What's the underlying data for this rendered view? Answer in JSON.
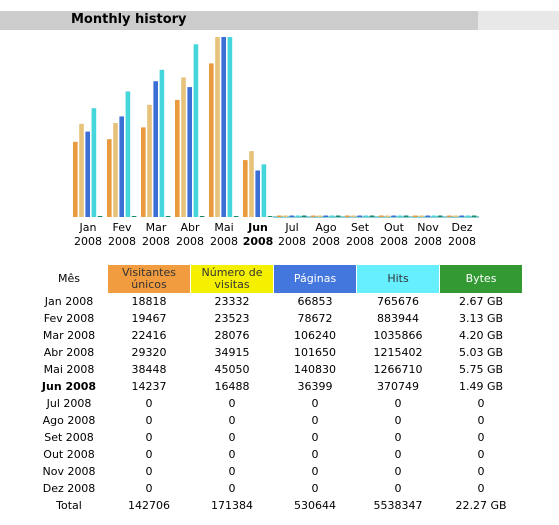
{
  "section_title": "Monthly history",
  "colors": {
    "visitors": "#e89a3c",
    "visits": "#e6c27a",
    "pages": "#3b6fd6",
    "hits": "#45d6db",
    "bytes": "#138a6e"
  },
  "chart_data": {
    "type": "bar",
    "title": "",
    "xlabel": "",
    "ylabel": "",
    "grid": false,
    "categories": [
      "Jan 2008",
      "Fev 2008",
      "Mar 2008",
      "Abr 2008",
      "Mai 2008",
      "Jun 2008",
      "Jul 2008",
      "Ago 2008",
      "Set 2008",
      "Out 2008",
      "Nov 2008",
      "Dez 2008"
    ],
    "category_lines": [
      [
        "Jan",
        "2008"
      ],
      [
        "Fev",
        "2008"
      ],
      [
        "Mar",
        "2008"
      ],
      [
        "Abr",
        "2008"
      ],
      [
        "Mai",
        "2008"
      ],
      [
        "Jun",
        "2008"
      ],
      [
        "Jul",
        "2008"
      ],
      [
        "Ago",
        "2008"
      ],
      [
        "Set",
        "2008"
      ],
      [
        "Out",
        "2008"
      ],
      [
        "Nov",
        "2008"
      ],
      [
        "Dez",
        "2008"
      ]
    ],
    "current_month_index": 5,
    "series": [
      {
        "key": "visitors",
        "values": [
          18818,
          19467,
          22416,
          29320,
          38448,
          14237,
          0,
          0,
          0,
          0,
          0,
          0
        ]
      },
      {
        "key": "visits",
        "values": [
          23332,
          23523,
          28076,
          34915,
          45050,
          16488,
          0,
          0,
          0,
          0,
          0,
          0
        ]
      },
      {
        "key": "pages",
        "values": [
          66853,
          78672,
          106240,
          101650,
          140830,
          36399,
          0,
          0,
          0,
          0,
          0,
          0
        ]
      },
      {
        "key": "hits",
        "values": [
          765676,
          883944,
          1035866,
          1215402,
          1266710,
          370749,
          0,
          0,
          0,
          0,
          0,
          0
        ]
      },
      {
        "key": "bytes_gb",
        "values": [
          2.67,
          3.13,
          4.2,
          5.03,
          5.75,
          1.49,
          0,
          0,
          0,
          0,
          0,
          0
        ]
      }
    ],
    "scale_groups": [
      [
        "visitors",
        "visits"
      ],
      [
        "pages"
      ],
      [
        "hits",
        "bytes_gb"
      ]
    ]
  },
  "table": {
    "headers": [
      "Mês",
      "Visitantes únicos",
      "Número de visitas",
      "Páginas",
      "Hits",
      "Bytes"
    ],
    "rows": [
      [
        "Jan 2008",
        "18818",
        "23332",
        "66853",
        "765676",
        "2.67 GB"
      ],
      [
        "Fev 2008",
        "19467",
        "23523",
        "78672",
        "883944",
        "3.13 GB"
      ],
      [
        "Mar 2008",
        "22416",
        "28076",
        "106240",
        "1035866",
        "4.20 GB"
      ],
      [
        "Abr 2008",
        "29320",
        "34915",
        "101650",
        "1215402",
        "5.03 GB"
      ],
      [
        "Mai 2008",
        "38448",
        "45050",
        "140830",
        "1266710",
        "5.75 GB"
      ],
      [
        "Jun 2008",
        "14237",
        "16488",
        "36399",
        "370749",
        "1.49 GB"
      ],
      [
        "Jul 2008",
        "0",
        "0",
        "0",
        "0",
        "0"
      ],
      [
        "Ago 2008",
        "0",
        "0",
        "0",
        "0",
        "0"
      ],
      [
        "Set 2008",
        "0",
        "0",
        "0",
        "0",
        "0"
      ],
      [
        "Out 2008",
        "0",
        "0",
        "0",
        "0",
        "0"
      ],
      [
        "Nov 2008",
        "0",
        "0",
        "0",
        "0",
        "0"
      ],
      [
        "Dez 2008",
        "0",
        "0",
        "0",
        "0",
        "0"
      ]
    ],
    "total": [
      "Total",
      "142706",
      "171384",
      "530644",
      "5538347",
      "22.27 GB"
    ]
  }
}
